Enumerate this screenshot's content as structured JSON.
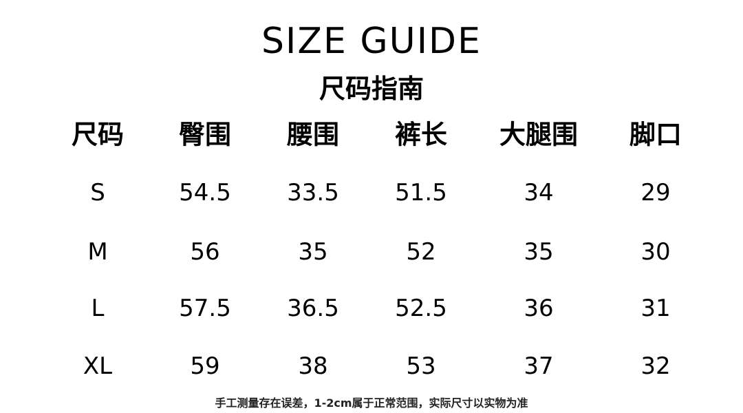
{
  "title": "SIZE GUIDE",
  "subtitle": "尺码指南",
  "table": {
    "headers": [
      "尺码",
      "臀围",
      "腰围",
      "裤长",
      "大腿围",
      "脚口"
    ],
    "rows": [
      [
        "S",
        "54.5",
        "33.5",
        "51.5",
        "34",
        "29"
      ],
      [
        "M",
        "56",
        "35",
        "52",
        "35",
        "30"
      ],
      [
        "L",
        "57.5",
        "36.5",
        "52.5",
        "36",
        "31"
      ],
      [
        "XL",
        "59",
        "38",
        "53",
        "37",
        "32"
      ]
    ]
  },
  "note": "手工测量存在误差，1-2cm属于正常范围，实际尺寸以实物为准"
}
